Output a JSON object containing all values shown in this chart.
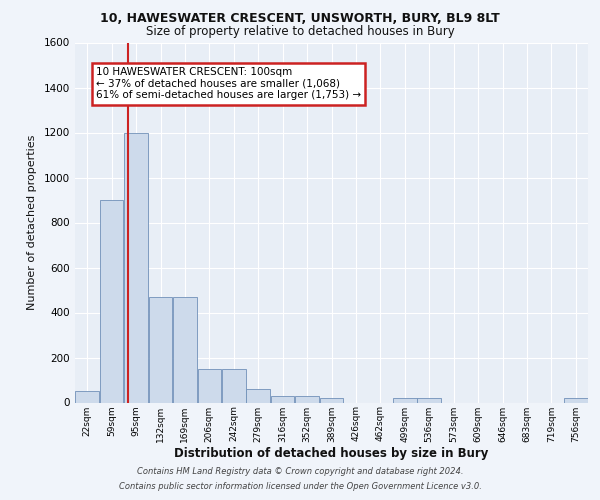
{
  "title1": "10, HAWESWATER CRESCENT, UNSWORTH, BURY, BL9 8LT",
  "title2": "Size of property relative to detached houses in Bury",
  "xlabel": "Distribution of detached houses by size in Bury",
  "ylabel": "Number of detached properties",
  "bar_labels": [
    "22sqm",
    "59sqm",
    "95sqm",
    "132sqm",
    "169sqm",
    "206sqm",
    "242sqm",
    "279sqm",
    "316sqm",
    "352sqm",
    "389sqm",
    "426sqm",
    "462sqm",
    "499sqm",
    "536sqm",
    "573sqm",
    "609sqm",
    "646sqm",
    "683sqm",
    "719sqm",
    "756sqm"
  ],
  "bar_heights": [
    50,
    900,
    1200,
    470,
    470,
    150,
    150,
    60,
    30,
    30,
    20,
    0,
    0,
    20,
    20,
    0,
    0,
    0,
    0,
    0,
    20
  ],
  "bar_color": "#cddaeb",
  "bar_edge_color": "#7090b8",
  "vline_x_index": 2,
  "vline_color": "#cc2222",
  "annotation_line1": "10 HAWESWATER CRESCENT: 100sqm",
  "annotation_line2": "← 37% of detached houses are smaller (1,068)",
  "annotation_line3": "61% of semi-detached houses are larger (1,753) →",
  "annotation_box_color": "#ffffff",
  "annotation_border_color": "#cc2222",
  "ylim": [
    0,
    1600
  ],
  "yticks": [
    0,
    200,
    400,
    600,
    800,
    1000,
    1200,
    1400,
    1600
  ],
  "background_color": "#e8eef6",
  "grid_color": "#ffffff",
  "footnote1": "Contains HM Land Registry data © Crown copyright and database right 2024.",
  "footnote2": "Contains public sector information licensed under the Open Government Licence v3.0."
}
